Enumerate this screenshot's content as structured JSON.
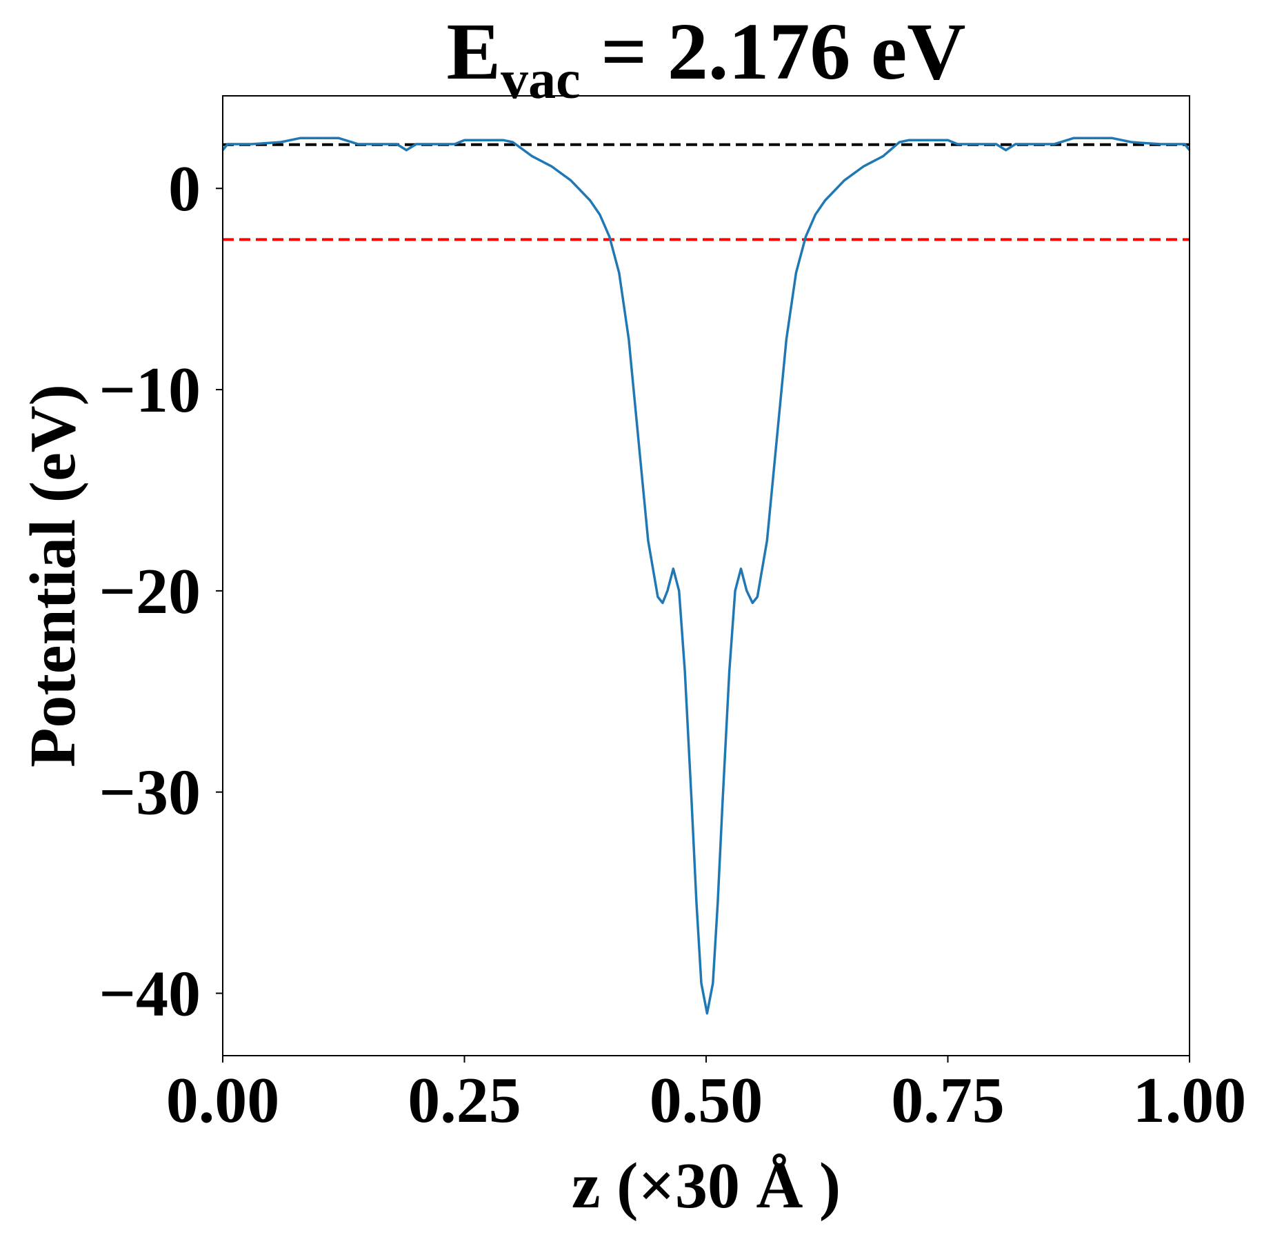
{
  "chart_data": {
    "type": "line",
    "title": {
      "main": "E",
      "subscript": "vac",
      "rest": " = 2.176 eV"
    },
    "x_label": "z (×30 Å )",
    "y_label": "Potential (eV)",
    "xlim": [
      0,
      1
    ],
    "ylim": [
      -43.1,
      4.6
    ],
    "xticks": [
      {
        "value": 0,
        "label": "0.00"
      },
      {
        "value": 0.25,
        "label": "0.25"
      },
      {
        "value": 0.5,
        "label": "0.50"
      },
      {
        "value": 0.75,
        "label": "0.75"
      },
      {
        "value": 1,
        "label": "1.00"
      }
    ],
    "yticks": [
      0,
      {
        "value": -10,
        "label": "−10"
      },
      {
        "value": -20,
        "label": "−20"
      },
      {
        "value": -30,
        "label": "−30"
      },
      {
        "value": -40,
        "label": "−40"
      }
    ],
    "hlines": [
      {
        "value": 2.176,
        "color": "#000000"
      },
      {
        "value": -2.54,
        "color": "#ff0000"
      }
    ],
    "x": [
      0.0,
      0.005,
      0.03,
      0.06,
      0.08,
      0.12,
      0.14,
      0.18,
      0.19,
      0.2,
      0.24,
      0.25,
      0.29,
      0.3,
      0.32,
      0.34,
      0.36,
      0.38,
      0.39,
      0.4,
      0.41,
      0.42,
      0.43,
      0.44,
      0.45,
      0.455,
      0.46,
      0.466,
      0.472,
      0.478,
      0.485,
      0.49,
      0.495,
      0.501,
      0.507,
      0.512,
      0.517,
      0.524,
      0.53,
      0.536,
      0.542,
      0.548,
      0.553,
      0.563,
      0.573,
      0.583,
      0.593,
      0.603,
      0.613,
      0.623,
      0.643,
      0.663,
      0.683,
      0.7,
      0.71,
      0.75,
      0.76,
      0.8,
      0.81,
      0.82,
      0.86,
      0.88,
      0.92,
      0.94,
      0.97,
      0.995,
      1.0
    ],
    "series": [
      {
        "color": "#1f77b4",
        "values": [
          1.9,
          2.2,
          2.2,
          2.3,
          2.5,
          2.5,
          2.2,
          2.2,
          1.9,
          2.2,
          2.2,
          2.4,
          2.4,
          2.3,
          1.6,
          1.1,
          0.4,
          -0.6,
          -1.3,
          -2.4,
          -4.2,
          -7.5,
          -12.5,
          -17.5,
          -20.3,
          -20.6,
          -20.0,
          -18.9,
          -20.0,
          -24.0,
          -30.5,
          -35.5,
          -39.5,
          -41.0,
          -39.5,
          -35.5,
          -30.5,
          -24.0,
          -20.0,
          -18.9,
          -20.0,
          -20.6,
          -20.3,
          -17.5,
          -12.5,
          -7.5,
          -4.2,
          -2.4,
          -1.3,
          -0.6,
          0.4,
          1.1,
          1.6,
          2.3,
          2.4,
          2.4,
          2.2,
          2.2,
          1.9,
          2.2,
          2.2,
          2.5,
          2.5,
          2.3,
          2.2,
          2.2,
          1.9
        ]
      }
    ]
  }
}
